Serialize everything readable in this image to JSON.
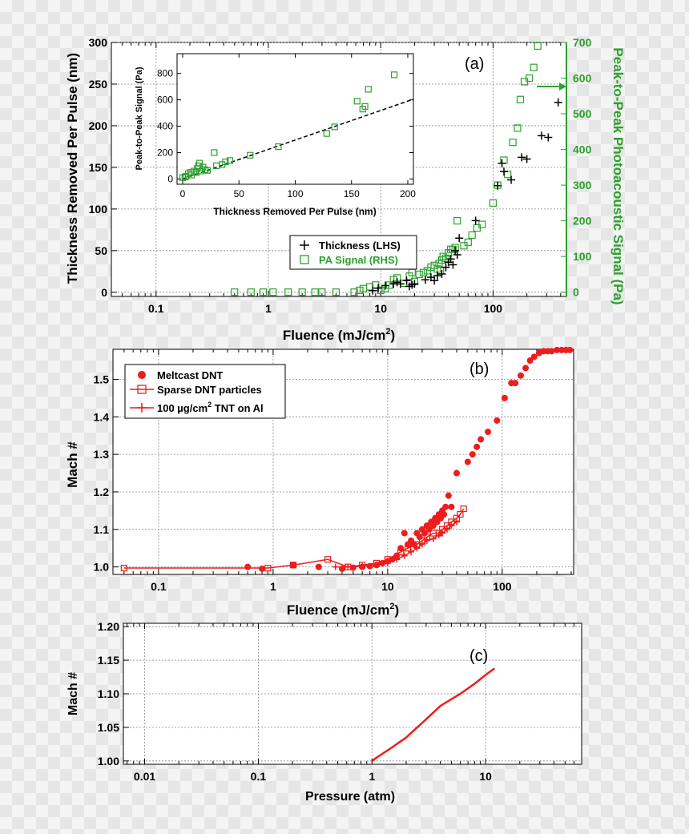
{
  "chart_data": [
    {
      "panel_label": "(a)",
      "type": "scatter",
      "xscale": "log",
      "xlim": [
        0.04,
        450
      ],
      "xlabel": "Fluence (mJ/cm",
      "xlabel_sup": "2",
      "xlabel_end": ")",
      "x_ticks": [
        0.1,
        1,
        10,
        100
      ],
      "x_tick_labels": [
        "0.1",
        "1",
        "10",
        "100"
      ],
      "ylabel": "Thickness Removed Per Pulse (nm)",
      "ylim": [
        -5,
        300
      ],
      "y_ticks": [
        0,
        50,
        100,
        150,
        200,
        250,
        300
      ],
      "y_tick_labels": [
        "0",
        "50",
        "100",
        "150",
        "200",
        "250",
        "300"
      ],
      "y2label": "Peak-to-Peak Photoacoustic Signal (Pa)",
      "y2lim": [
        -12,
        700
      ],
      "y2_ticks": [
        0,
        100,
        200,
        300,
        400,
        500,
        600,
        700
      ],
      "y2_tick_labels": [
        "0",
        "100",
        "200",
        "300",
        "400",
        "500",
        "600",
        "700"
      ],
      "grid": true,
      "legend_position": "center-right",
      "series": [
        {
          "name": "Thickness (LHS)",
          "marker": "plus",
          "color": "#000000",
          "axis": "left",
          "x": [
            8.5,
            9.5,
            11,
            13,
            14,
            15,
            17,
            18,
            19,
            20,
            25,
            28,
            30,
            32,
            35,
            38,
            40,
            42,
            44,
            46,
            48,
            50,
            70,
            110,
            120,
            125,
            145,
            180,
            200,
            270,
            310,
            380
          ],
          "y": [
            2,
            5,
            8,
            10,
            12,
            10,
            14,
            7,
            9,
            10,
            15,
            18,
            14,
            20,
            22,
            30,
            36,
            40,
            33,
            50,
            45,
            65,
            86,
            128,
            155,
            145,
            135,
            162,
            160,
            188,
            186,
            228
          ]
        },
        {
          "name": "PA Signal (RHS)",
          "marker": "open-square",
          "color": "#2ca02c",
          "axis": "right",
          "x": [
            0.5,
            0.7,
            0.9,
            1.1,
            1.5,
            2.0,
            2.6,
            3.0,
            4.0,
            5.8,
            6.5,
            7.0,
            8.0,
            9.0,
            10,
            11,
            12,
            13,
            14,
            16,
            18,
            19,
            20,
            22,
            24,
            26,
            28,
            30,
            32,
            33,
            34,
            35,
            36,
            38,
            40,
            42,
            44,
            46,
            48,
            55,
            60,
            65,
            72,
            80,
            100,
            110,
            125,
            135,
            150,
            165,
            175,
            190,
            210,
            230,
            250
          ],
          "y": [
            0,
            0,
            0,
            0,
            0,
            0,
            0,
            0,
            0,
            0,
            5,
            10,
            15,
            20,
            5,
            10,
            20,
            35,
            40,
            25,
            45,
            55,
            30,
            50,
            55,
            60,
            70,
            75,
            65,
            80,
            60,
            90,
            100,
            95,
            110,
            120,
            120,
            125,
            200,
            130,
            140,
            160,
            180,
            190,
            250,
            300,
            370,
            330,
            420,
            460,
            540,
            590,
            600,
            630,
            690
          ]
        }
      ],
      "inset": {
        "type": "scatter",
        "xlim": [
          -5,
          205
        ],
        "ylim": [
          -40,
          950
        ],
        "xlabel": "Thickness Removed Per Pulse (nm)",
        "ylabel": "Peak-to-Peak Signal (Pa)",
        "x_ticks": [
          0,
          50,
          100,
          150,
          200
        ],
        "x_tick_labels": [
          "0",
          "50",
          "100",
          "150",
          "200"
        ],
        "y_ticks": [
          0,
          200,
          400,
          600,
          800
        ],
        "y_tick_labels": [
          "0",
          "200",
          "400",
          "600",
          "800"
        ],
        "marker": "open-square",
        "color": "#2ca02c",
        "x": [
          0,
          2,
          3,
          5,
          7,
          8,
          10,
          12,
          13,
          14,
          15,
          16,
          18,
          20,
          22,
          28,
          30,
          35,
          38,
          42,
          60,
          85,
          128,
          135,
          155,
          160,
          162,
          165,
          188
        ],
        "y": [
          10,
          15,
          20,
          40,
          50,
          30,
          60,
          50,
          80,
          100,
          120,
          60,
          90,
          70,
          65,
          200,
          100,
          110,
          130,
          140,
          180,
          245,
          345,
          395,
          590,
          530,
          550,
          680,
          790
        ],
        "fit_line": {
          "x": [
            0,
            205
          ],
          "y": [
            0,
            605
          ],
          "style": "dashed"
        }
      }
    },
    {
      "panel_label": "(b)",
      "type": "scatter",
      "xscale": "log",
      "xlim": [
        0.04,
        420
      ],
      "xlabel": "Fluence (mJ/cm",
      "xlabel_sup": "2",
      "xlabel_end": ")",
      "x_ticks": [
        0.1,
        1,
        10,
        100
      ],
      "x_tick_labels": [
        "0.1",
        "1",
        "10",
        "100"
      ],
      "ylabel": "Mach #",
      "ylim": [
        0.98,
        1.58
      ],
      "y_ticks": [
        1.0,
        1.1,
        1.2,
        1.3,
        1.4,
        1.5
      ],
      "y_tick_labels": [
        "1.0",
        "1.1",
        "1.2",
        "1.3",
        "1.4",
        "1.5"
      ],
      "grid": true,
      "legend_position": "top-left",
      "series": [
        {
          "name": "Meltcast DNT",
          "marker": "filled-circle",
          "color": "#ee1c1c",
          "x": [
            0.6,
            0.8,
            1.5,
            2.5,
            4,
            5,
            6,
            7,
            8,
            9,
            10,
            11,
            12,
            13,
            14,
            15,
            16,
            17,
            18,
            19,
            20,
            21,
            22,
            23,
            24,
            25,
            26,
            27,
            28,
            29,
            30,
            31,
            32,
            34,
            36,
            40,
            50,
            55,
            60,
            65,
            75,
            90,
            105,
            120,
            130,
            145,
            160,
            175,
            190,
            210,
            230,
            250,
            270,
            300,
            330,
            360,
            390
          ],
          "y": [
            1.0,
            0.995,
            1.005,
            1.0,
            0.995,
            0.998,
            1.0,
            1.002,
            1.005,
            1.01,
            1.015,
            1.02,
            1.03,
            1.05,
            1.09,
            1.06,
            1.07,
            1.06,
            1.09,
            1.08,
            1.1,
            1.09,
            1.11,
            1.1,
            1.12,
            1.11,
            1.13,
            1.12,
            1.14,
            1.13,
            1.15,
            1.14,
            1.16,
            1.19,
            1.16,
            1.25,
            1.28,
            1.3,
            1.32,
            1.34,
            1.36,
            1.39,
            1.45,
            1.49,
            1.49,
            1.51,
            1.53,
            1.55,
            1.56,
            1.57,
            1.575,
            1.575,
            1.575,
            1.578,
            1.578,
            1.578,
            1.578
          ]
        },
        {
          "name": "Sparse DNT particles",
          "marker": "open-square-line",
          "color": "#ee1c1c",
          "x": [
            0.05,
            0.9,
            1.5,
            3.0,
            4.5,
            6.0,
            8.0,
            10,
            13,
            15,
            18,
            20,
            22,
            25,
            28,
            30,
            33,
            36,
            40,
            43,
            46
          ],
          "y": [
            0.997,
            0.997,
            1.005,
            1.02,
            1.0,
            1.005,
            1.01,
            1.02,
            1.04,
            1.05,
            1.06,
            1.07,
            1.08,
            1.09,
            1.09,
            1.1,
            1.11,
            1.12,
            1.13,
            1.14,
            1.155
          ]
        },
        {
          "name": "100 µg/cm",
          "name_sup": "2",
          "name_end": " TNT on Al",
          "marker": "plus-line",
          "color": "#ee1c1c",
          "x": [
            3.5,
            4.5,
            6,
            8,
            10,
            12,
            14,
            16,
            18,
            20,
            22,
            25,
            28,
            30,
            33,
            36,
            40
          ],
          "y": [
            1.0,
            1.0,
            1.002,
            1.005,
            1.01,
            1.02,
            1.03,
            1.04,
            1.05,
            1.06,
            1.07,
            1.075,
            1.085,
            1.09,
            1.1,
            1.11,
            1.12
          ]
        }
      ]
    },
    {
      "panel_label": "(c)",
      "type": "line",
      "xscale": "log",
      "xlim": [
        0.0065,
        70
      ],
      "xlabel": "Pressure (atm)",
      "x_ticks": [
        0.01,
        0.1,
        1,
        10
      ],
      "x_tick_labels": [
        "0.01",
        "0.1",
        "1",
        "10"
      ],
      "ylabel": "Mach #",
      "ylim": [
        0.995,
        1.205
      ],
      "y_ticks": [
        1.0,
        1.05,
        1.1,
        1.15,
        1.2
      ],
      "y_tick_labels": [
        "1.00",
        "1.05",
        "1.10",
        "1.15",
        "1.20"
      ],
      "grid": true,
      "series": [
        {
          "color": "#ee1c1c",
          "x": [
            1.0,
            1.1,
            1.5,
            2,
            3,
            4,
            6,
            8,
            10,
            12
          ],
          "y": [
            1.0,
            1.005,
            1.02,
            1.035,
            1.062,
            1.082,
            1.1,
            1.115,
            1.128,
            1.138
          ]
        }
      ]
    }
  ]
}
